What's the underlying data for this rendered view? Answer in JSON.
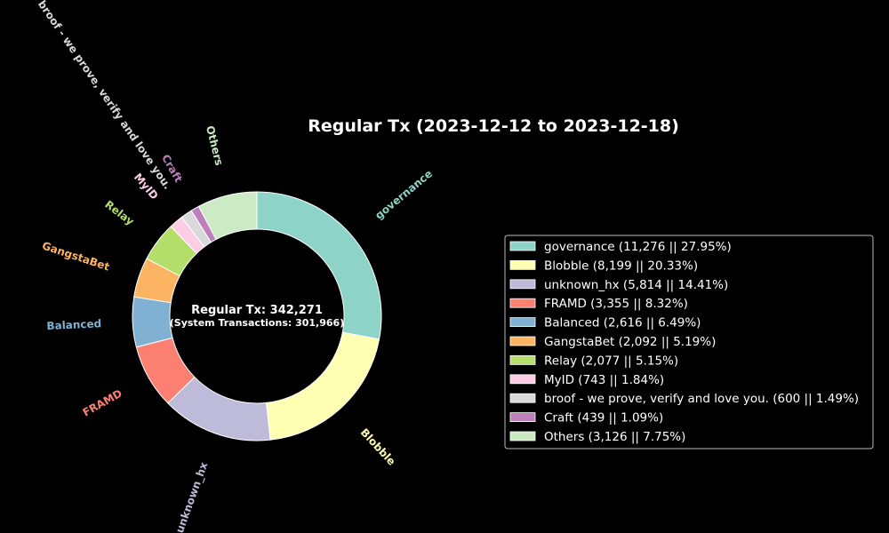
{
  "chart_data": {
    "type": "pie",
    "style": "donut",
    "title": "Regular Tx (2023-12-12 to 2023-12-18)",
    "center_text": {
      "main": "Regular Tx: 342,271",
      "sub": "(System Transactions: 301,966)"
    },
    "legend_position": "right",
    "slices": [
      {
        "label": "governance",
        "value": 11276,
        "percent": "27.95%",
        "color": "#8dd3c7",
        "legend": "governance (11,276 || 27.95%)"
      },
      {
        "label": "Blobble",
        "value": 8199,
        "percent": "20.33%",
        "color": "#ffffb3",
        "legend": "Blobble (8,199 || 20.33%)"
      },
      {
        "label": "unknown_hx",
        "value": 5814,
        "percent": "14.41%",
        "color": "#bebada",
        "legend": "unknown_hx (5,814 || 14.41%)"
      },
      {
        "label": "FRAMD",
        "value": 3355,
        "percent": "8.32%",
        "color": "#fb8072",
        "legend": "FRAMD (3,355 || 8.32%)"
      },
      {
        "label": "Balanced",
        "value": 2616,
        "percent": "6.49%",
        "color": "#80b1d3",
        "legend": "Balanced (2,616 || 6.49%)"
      },
      {
        "label": "GangstaBet",
        "value": 2092,
        "percent": "5.19%",
        "color": "#fdb462",
        "legend": "GangstaBet (2,092 || 5.19%)"
      },
      {
        "label": "Relay",
        "value": 2077,
        "percent": "5.15%",
        "color": "#b3de69",
        "legend": "Relay (2,077 || 5.15%)"
      },
      {
        "label": "MyID",
        "value": 743,
        "percent": "1.84%",
        "color": "#fccde5",
        "legend": "MyID (743 || 1.84%)"
      },
      {
        "label": "broof - we prove, verify and love you.",
        "value": 600,
        "percent": "1.49%",
        "color": "#d9d9d9",
        "legend": "broof - we prove, verify and love you. (600 || 1.49%)"
      },
      {
        "label": "Craft",
        "value": 439,
        "percent": "1.09%",
        "color": "#bc80bd",
        "legend": "Craft (439 || 1.09%)"
      },
      {
        "label": "Others",
        "value": 3126,
        "percent": "7.75%",
        "color": "#ccebc5",
        "legend": "Others (3,126 || 7.75%)"
      }
    ]
  }
}
